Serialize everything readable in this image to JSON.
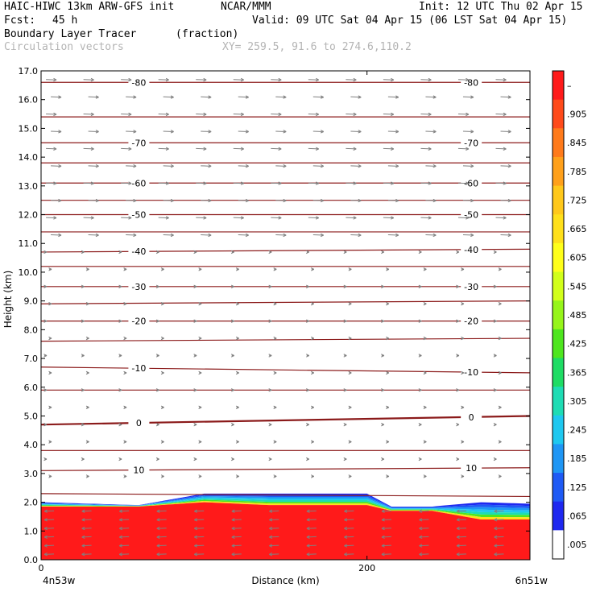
{
  "header": {
    "model": "HAIC-HIWC 13km ARW-GFS init",
    "org": "NCAR/MMM",
    "init": "Init: 12 UTC Thu 02 Apr 15",
    "fcst_label": "Fcst:",
    "fcst_value": "45 h",
    "valid": "Valid: 09 UTC Sat 04 Apr 15 (06 LST Sat 04 Apr 15)",
    "field1_name": "Boundary Layer Tracer",
    "field1_units": "(fraction)",
    "field2_name": "Circulation vectors",
    "xy": "XY= 259.5, 91.6 to 274.6,110.2"
  },
  "colors": {
    "contour": "#8b1a1a",
    "vector": "#808080",
    "field_high": "#ff1a1a",
    "field_low": "#ffffff"
  },
  "chart_data": {
    "type": "heatmap",
    "title": "Boundary Layer Tracer",
    "units": "(fraction)",
    "xlabel": "Distance (km)",
    "ylabel": "Height (km)",
    "xlim": [
      0,
      300
    ],
    "ylim": [
      0,
      17
    ],
    "x_ticks": [
      0,
      200
    ],
    "x_tick_labels": [
      "0",
      "200"
    ],
    "y_ticks": [
      0,
      1,
      2,
      3,
      4,
      5,
      6,
      7,
      8,
      9,
      10,
      11,
      12,
      13,
      14,
      15,
      16,
      17
    ],
    "y_tick_labels": [
      "0.0",
      "1.0",
      "2.0",
      "3.0",
      "4.0",
      "5.0",
      "6.0",
      "7.0",
      "8.0",
      "9.0",
      "10.0",
      "11.0",
      "12.0",
      "13.0",
      "14.0",
      "15.0",
      "16.0",
      "17.0"
    ],
    "x_endpoint_left": "4n53w",
    "x_endpoint_right": "6n51w",
    "colorbar": {
      "labels": [
        "–",
        ".905",
        ".845",
        ".785",
        ".725",
        ".665",
        ".605",
        ".545",
        ".485",
        ".425",
        ".365",
        ".305",
        ".245",
        ".185",
        ".125",
        ".065",
        ".005"
      ],
      "colors": [
        "#ff1a1a",
        "#ff4a1a",
        "#ff7a1a",
        "#ffa01a",
        "#ffc81a",
        "#ffe01a",
        "#ffff1a",
        "#d2ff1a",
        "#96f51a",
        "#4ee61e",
        "#1edc64",
        "#1edcb4",
        "#1ec8f0",
        "#1e96f5",
        "#1e5af5",
        "#1e28f0",
        "#ffffff"
      ]
    },
    "temperature_contours": [
      {
        "value": -80,
        "label": "-80",
        "y": [
          16.6,
          16.6
        ]
      },
      {
        "value": -75,
        "label": "",
        "y": [
          15.4,
          15.4
        ]
      },
      {
        "value": -70,
        "label": "-70",
        "y": [
          14.5,
          14.5
        ]
      },
      {
        "value": -65,
        "label": "",
        "y": [
          13.8,
          13.8
        ]
      },
      {
        "value": -60,
        "label": "-60",
        "y": [
          13.1,
          13.1
        ]
      },
      {
        "value": -55,
        "label": "",
        "y": [
          12.5,
          12.5
        ]
      },
      {
        "value": -50,
        "label": "-50",
        "y": [
          12.0,
          12.0
        ]
      },
      {
        "value": -45,
        "label": "",
        "y": [
          11.4,
          11.4
        ]
      },
      {
        "value": -40,
        "label": "-40",
        "y": [
          10.7,
          10.8
        ]
      },
      {
        "value": -35,
        "label": "",
        "y": [
          10.2,
          10.2
        ]
      },
      {
        "value": -30,
        "label": "-30",
        "y": [
          9.5,
          9.5
        ]
      },
      {
        "value": -25,
        "label": "",
        "y": [
          8.9,
          9.0
        ]
      },
      {
        "value": -20,
        "label": "-20",
        "y": [
          8.3,
          8.3
        ]
      },
      {
        "value": -15,
        "label": "",
        "y": [
          7.6,
          7.7
        ]
      },
      {
        "value": -10,
        "label": "-10",
        "y": [
          6.7,
          6.5
        ]
      },
      {
        "value": -5,
        "label": "",
        "y": [
          5.9,
          5.9
        ]
      },
      {
        "value": 0,
        "label": "0",
        "y": [
          4.7,
          5.0
        ]
      },
      {
        "value": 5,
        "label": "",
        "y": [
          3.8,
          3.8
        ]
      },
      {
        "value": 10,
        "label": "10",
        "y": [
          3.1,
          3.2
        ]
      },
      {
        "value": 15,
        "label": "",
        "y": [
          2.3,
          2.2
        ]
      }
    ],
    "tracer_top_km": {
      "x": [
        0,
        60,
        100,
        140,
        200,
        215,
        240,
        270,
        300
      ],
      "y": [
        2.0,
        1.9,
        2.3,
        2.3,
        2.3,
        1.85,
        1.85,
        2.0,
        1.95
      ]
    },
    "tracer_high_top_km": {
      "x": [
        0,
        60,
        100,
        140,
        200,
        215,
        240,
        270,
        300
      ],
      "y": [
        1.85,
        1.85,
        2.0,
        1.9,
        1.9,
        1.7,
        1.7,
        1.4,
        1.4
      ]
    },
    "wind_vectors": {
      "upper_levels_km": [
        16.7,
        16.1,
        15.5,
        14.9,
        14.3,
        13.7,
        13.1,
        12.5,
        11.9,
        11.3
      ],
      "upper_direction": "eastward",
      "middle_levels_km": [
        10.7,
        10.1,
        9.5,
        8.9,
        8.3,
        7.7,
        7.1,
        6.5,
        5.9,
        5.3,
        4.7,
        4.1,
        3.5,
        2.9
      ],
      "middle_direction": "calm",
      "boundary_levels_km": [
        1.7,
        1.4,
        1.1,
        0.8,
        0.5,
        0.2
      ],
      "boundary_direction": "westward"
    }
  }
}
